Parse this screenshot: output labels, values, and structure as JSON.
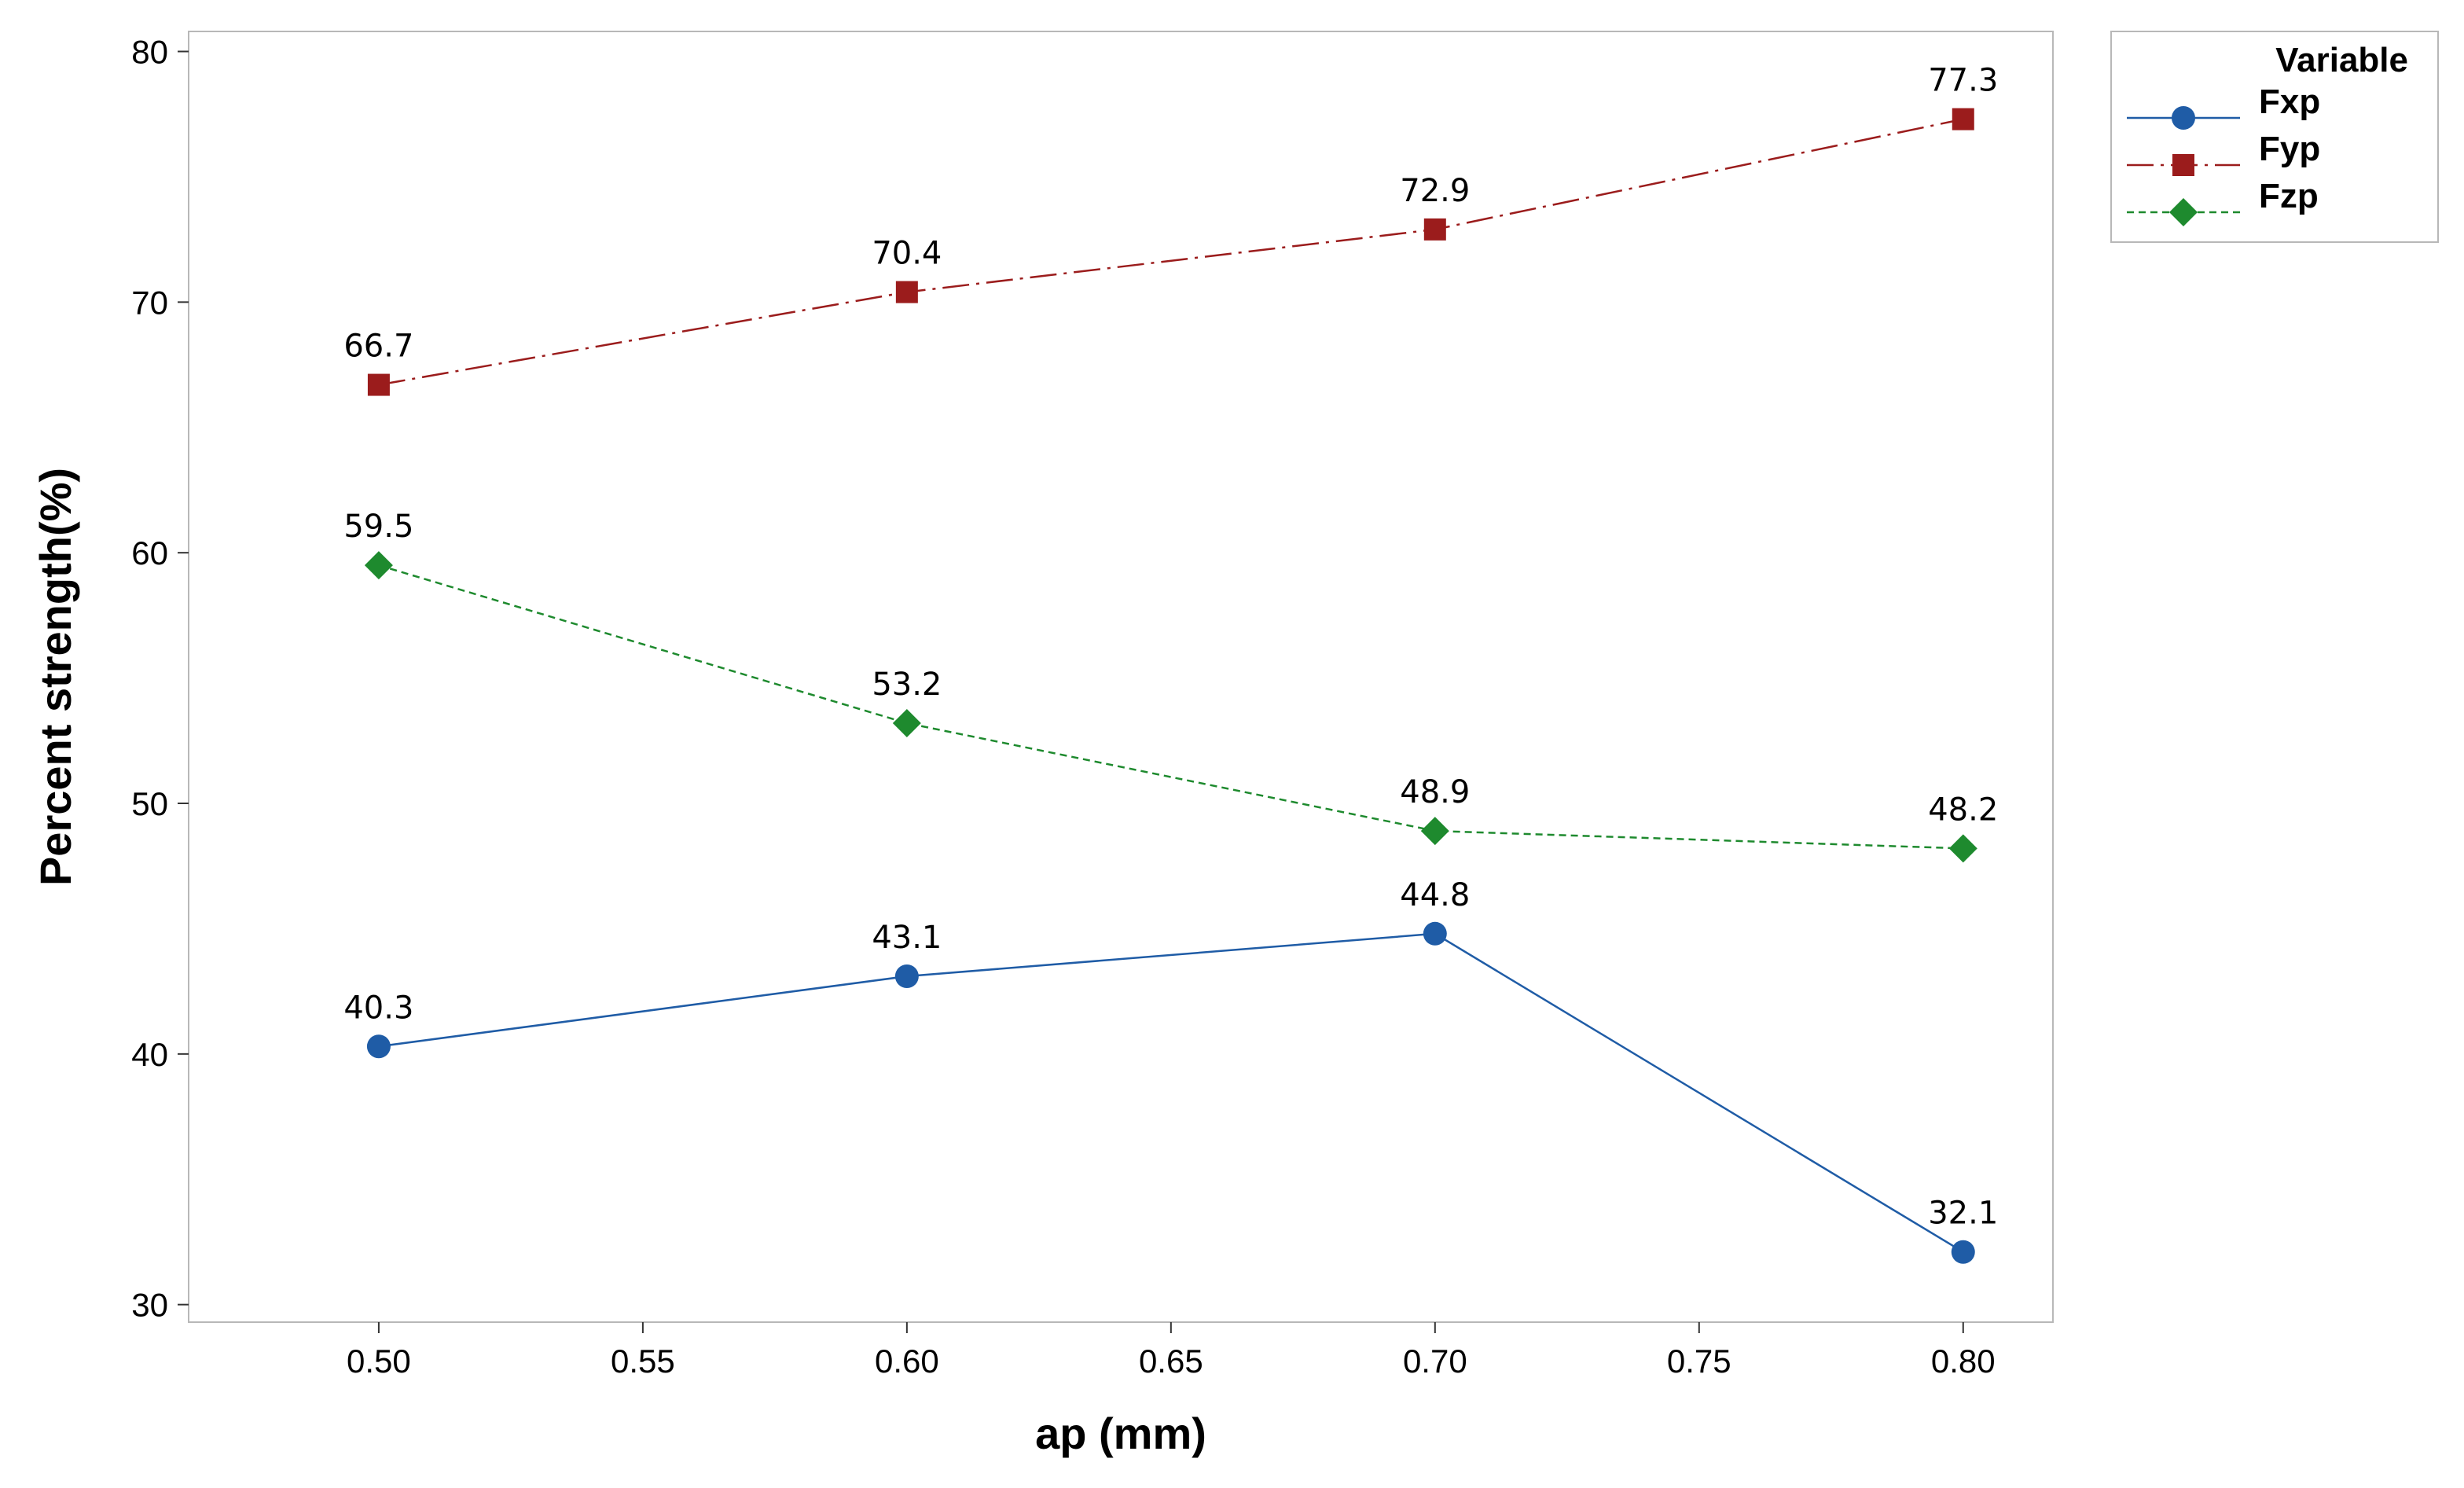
{
  "chart_data": {
    "type": "line",
    "x": [
      0.5,
      0.6,
      0.7,
      0.8
    ],
    "series": [
      {
        "name": "Fxp",
        "values": [
          40.3,
          43.1,
          44.8,
          32.1
        ],
        "color": "#1f5ca6",
        "marker": "circle",
        "dash": "solid"
      },
      {
        "name": "Fyp",
        "values": [
          66.7,
          70.4,
          72.9,
          77.3
        ],
        "color": "#9b1c1c",
        "marker": "square",
        "dash": "long-dash"
      },
      {
        "name": "Fzp",
        "values": [
          59.5,
          53.2,
          48.9,
          48.2
        ],
        "color": "#1e8a2e",
        "marker": "diamond",
        "dash": "short-dash"
      }
    ],
    "data_labels": {
      "Fxp": [
        "40.3",
        "43.1",
        "44.8",
        "32.1"
      ],
      "Fyp": [
        "66.7",
        "70.4",
        "72.9",
        "77.3"
      ],
      "Fzp": [
        "59.5",
        "53.2",
        "48.9",
        "48.2"
      ]
    },
    "xlabel": "ap (mm)",
    "ylabel": "Percent strength(%)",
    "xlim": [
      0.464,
      0.817
    ],
    "ylim": [
      29.3,
      80.8
    ],
    "x_ticks": [
      "0.50",
      "0.55",
      "0.60",
      "0.65",
      "0.70",
      "0.75",
      "0.80"
    ],
    "x_tick_values": [
      0.5,
      0.55,
      0.6,
      0.65,
      0.7,
      0.75,
      0.8
    ],
    "y_ticks": [
      "30",
      "40",
      "50",
      "60",
      "70",
      "80"
    ],
    "y_tick_values": [
      30,
      40,
      50,
      60,
      70,
      80
    ],
    "legend": {
      "title": "Variable",
      "position": "top-right-outside"
    },
    "grid": false
  }
}
